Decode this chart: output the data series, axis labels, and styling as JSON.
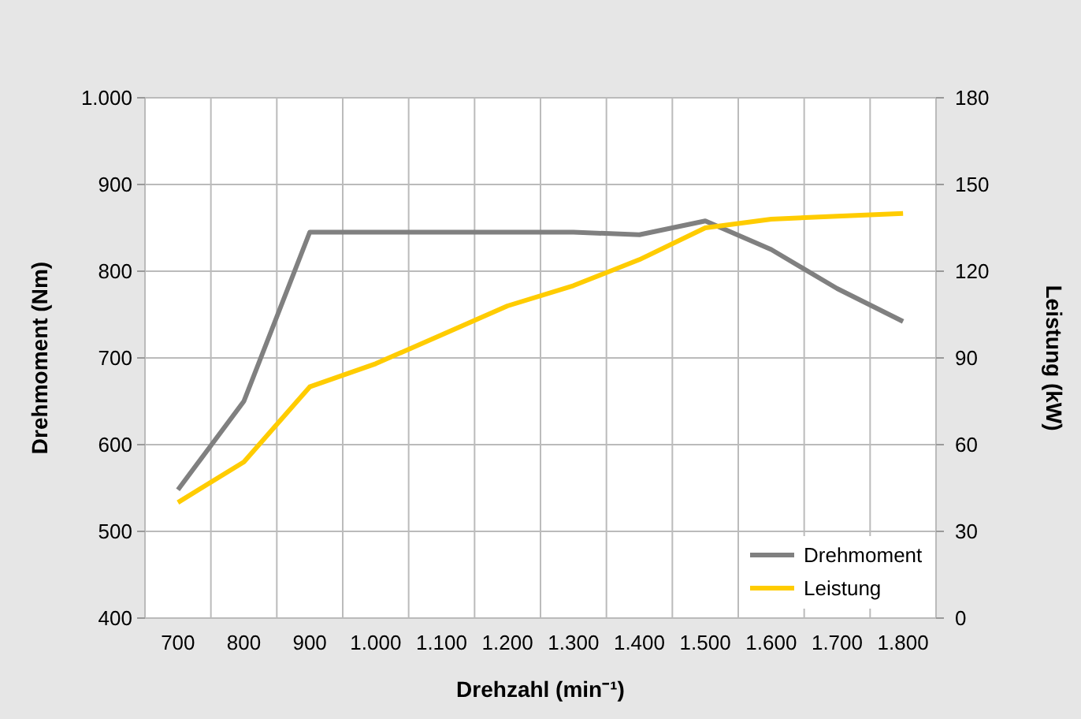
{
  "chart_data": {
    "type": "line",
    "xlabel": "Drehzahl (min⁻¹)",
    "ylabel": "Drehmoment (Nm)",
    "y2label": "Leistung (kW)",
    "categories": [
      "700",
      "800",
      "900",
      "1.000",
      "1.100",
      "1.200",
      "1.300",
      "1.400",
      "1.500",
      "1.600",
      "1.700",
      "1.800"
    ],
    "series": [
      {
        "name": "Drehmoment",
        "color": "#808080",
        "values": [
          548,
          650,
          845,
          845,
          845,
          845,
          845,
          842,
          858,
          825,
          780,
          742
        ]
      },
      {
        "name": "Leistung",
        "color": "#ffcc00",
        "axis": "y2",
        "values": [
          40,
          54,
          80,
          88,
          98,
          108,
          115,
          124,
          135,
          138,
          139,
          140
        ]
      }
    ],
    "ylim": [
      400,
      1000
    ],
    "yticks": [
      400,
      500,
      600,
      700,
      800,
      900,
      {
        "value": 1000,
        "label": "1.000"
      }
    ],
    "y2lim": [
      0,
      180
    ],
    "y2ticks": [
      0,
      30,
      60,
      90,
      120,
      150,
      180
    ],
    "grid": true,
    "legend": "bottom right",
    "marker": "none",
    "line_style": "solid"
  }
}
